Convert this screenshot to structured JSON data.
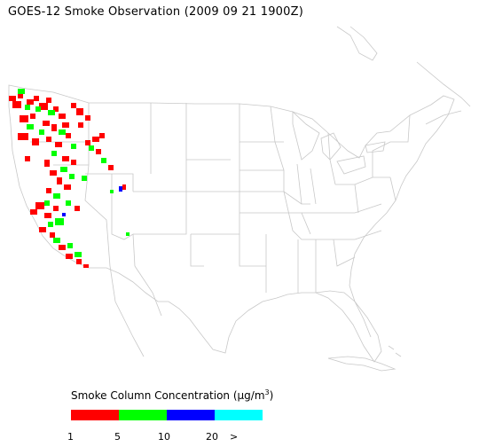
{
  "title": "GOES-12 Smoke Observation (2009 09 21  1900Z)",
  "legend": {
    "title_prefix": "Smoke Column Concentration (",
    "unit_mu": "μ",
    "unit_rest": "g/m",
    "unit_sup": "3",
    "title_suffix": ")",
    "bins": [
      {
        "label": "1",
        "color": "#ff0000"
      },
      {
        "label": "5",
        "color": "#00ff00"
      },
      {
        "label": "10",
        "color": "#0000ff"
      },
      {
        "label": "20",
        "color": "#00ffff"
      }
    ],
    "overflow_label": ">"
  },
  "colors": {
    "boundary": "#c8c8c8",
    "smoke_light": "#ff0000",
    "smoke_moderate": "#00ff00",
    "smoke_heavy": "#0000ff"
  }
}
